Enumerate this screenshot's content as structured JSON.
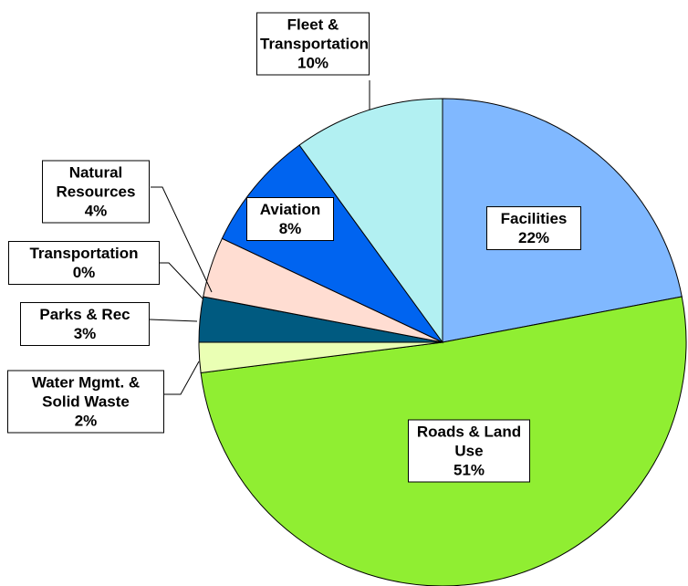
{
  "chart_data": {
    "type": "pie",
    "categories": [
      "Facilities",
      "Roads & Land Use",
      "Water Mgmt. & Solid Waste",
      "Parks & Rec",
      "Transportation",
      "Natural Resources",
      "Aviation",
      "Fleet & Transportation"
    ],
    "values": [
      22,
      51,
      2,
      3,
      0,
      4,
      8,
      10
    ],
    "value_labels": [
      "22%",
      "51%",
      "2%",
      "3%",
      "0%",
      "4%",
      "8%",
      "10%"
    ],
    "colors": [
      "#80b8ff",
      "#90ee32",
      "#eaffb4",
      "#005a80",
      "#7d9dc6",
      "#ffddd2",
      "#0064f0",
      "#b2f0f2"
    ]
  }
}
